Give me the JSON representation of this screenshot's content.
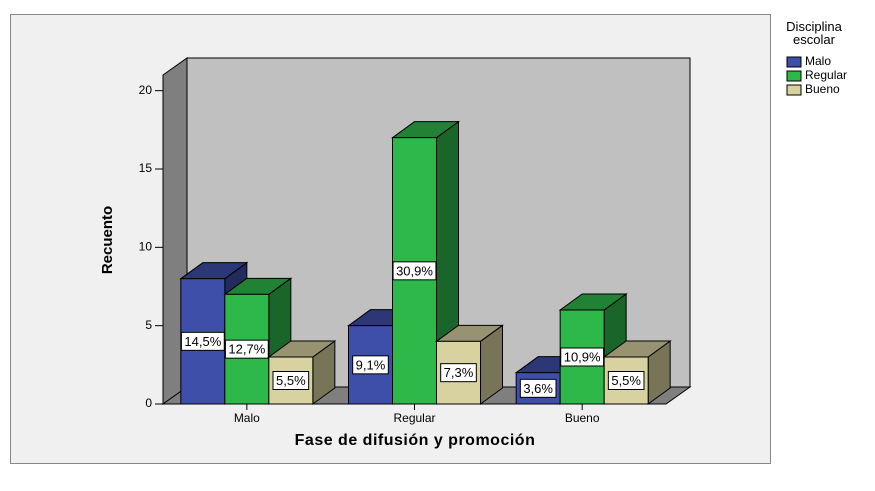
{
  "chart_data": {
    "type": "bar3d",
    "x_label": "Fase de difusión y promoción",
    "y_label": "Recuento",
    "legend_title": "Disciplina escolar",
    "categories": [
      "Malo",
      "Regular",
      "Bueno"
    ],
    "ylim": [
      0,
      21
    ],
    "yticks": [
      0,
      5,
      10,
      15,
      20
    ],
    "series": [
      {
        "name": "Malo",
        "color": "#3d4fa8",
        "values": [
          8,
          5,
          2
        ],
        "percents": [
          14.5,
          9.1,
          3.6
        ],
        "percent_labels": [
          "14,5%",
          "9,1%",
          "3,6%"
        ]
      },
      {
        "name": "Regular",
        "color": "#2fb84a",
        "values": [
          7,
          17,
          6
        ],
        "percents": [
          12.7,
          30.9,
          10.9
        ],
        "percent_labels": [
          "12,7%",
          "30,9%",
          "10,9%"
        ]
      },
      {
        "name": "Bueno",
        "color": "#d8d2a0",
        "values": [
          3,
          4,
          3
        ],
        "percents": [
          5.5,
          7.3,
          5.5
        ],
        "percent_labels": [
          "5,5%",
          "7,3%",
          "5,5%"
        ]
      }
    ]
  }
}
